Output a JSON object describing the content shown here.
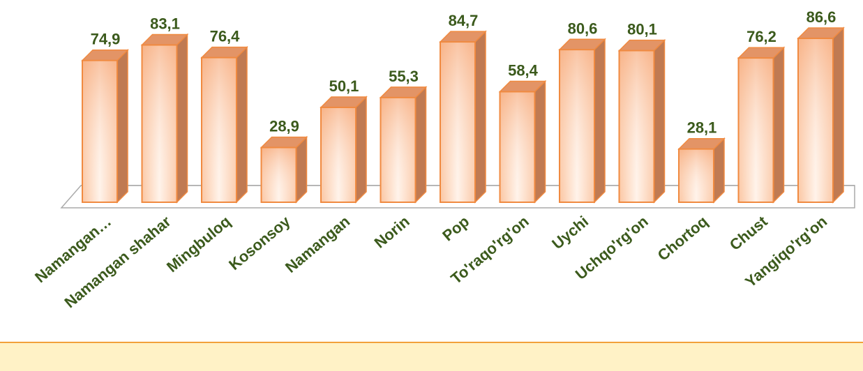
{
  "chart_data": {
    "type": "bar3d",
    "categories": [
      "Namangan…",
      "Namangan shahar",
      "Mingbuloq",
      "Kosonsoy",
      "Namangan",
      "Norin",
      "Pop",
      "To'raqo'rg'on",
      "Uychi",
      "Uchqo'rg'on",
      "Chortoq",
      "Chust",
      "Yangiqo'rg'on"
    ],
    "values": [
      74.9,
      83.1,
      76.4,
      28.9,
      50.1,
      55.3,
      84.7,
      58.4,
      80.6,
      80.1,
      28.1,
      76.2,
      86.6
    ],
    "value_labels": [
      "74,9",
      "83,1",
      "76,4",
      "28,9",
      "50,1",
      "55,3",
      "84,7",
      "58,4",
      "80,6",
      "80,1",
      "28,1",
      "76,2",
      "86,6"
    ],
    "color": "#f08a40"
  }
}
